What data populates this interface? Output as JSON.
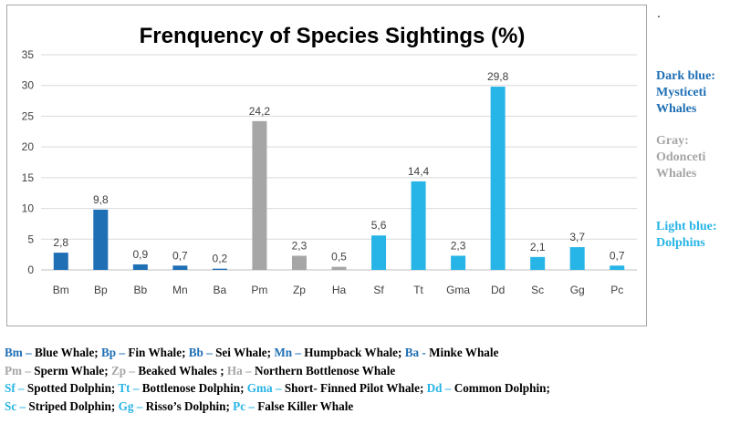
{
  "corner_mark": ".",
  "colors": {
    "mysticeti": "#1f6fb5",
    "odonceti": "#a6a6a6",
    "dolphins": "#27b4e6"
  },
  "chart_data": {
    "type": "bar",
    "title": "Frenquency of  Species Sightings (%)",
    "xlabel": "",
    "ylabel": "",
    "ylim": [
      0,
      35
    ],
    "yticks": [
      "0",
      "5",
      "10",
      "15",
      "20",
      "25",
      "30",
      "35"
    ],
    "grid": true,
    "legend_position": "right",
    "categories": [
      "Bm",
      "Bp",
      "Bb",
      "Mn",
      "Ba",
      "Pm",
      "Zp",
      "Ha",
      "Sf",
      "Tt",
      "Gma",
      "Dd",
      "Sc",
      "Gg",
      "Pc"
    ],
    "values": [
      2.8,
      9.8,
      0.9,
      0.7,
      0.2,
      24.2,
      2.3,
      0.5,
      5.6,
      14.4,
      2.3,
      29.8,
      2.1,
      3.7,
      0.7
    ],
    "value_labels": [
      "2,8",
      "9,8",
      "0,9",
      "0,7",
      "0,2",
      "24,2",
      "2,3",
      "0,5",
      "5,6",
      "14,4",
      "2,3",
      "29,8",
      "2,1",
      "3,7",
      "0,7"
    ],
    "groups": [
      "mysticeti",
      "mysticeti",
      "mysticeti",
      "mysticeti",
      "mysticeti",
      "odonceti",
      "odonceti",
      "odonceti",
      "dolphins",
      "dolphins",
      "dolphins",
      "dolphins",
      "dolphins",
      "dolphins",
      "dolphins"
    ]
  },
  "side_legend": [
    {
      "group": "mysticeti",
      "lines": [
        "Dark blue:",
        "Mysticeti",
        "Whales"
      ]
    },
    {
      "group": "odonceti",
      "lines": [
        "Gray:",
        "Odonceti",
        "Whales"
      ]
    },
    {
      "group": "dolphins",
      "lines": [
        "Light blue:",
        "Dolphins"
      ]
    }
  ],
  "footer": [
    [
      {
        "text": "Bm – ",
        "group": "mysticeti"
      },
      {
        "text": "Blue Whale; "
      },
      {
        "text": "Bp – ",
        "group": "mysticeti"
      },
      {
        "text": "Fin Whale; "
      },
      {
        "text": "Bb – ",
        "group": "mysticeti"
      },
      {
        "text": "Sei Whale; "
      },
      {
        "text": "Mn – ",
        "group": "mysticeti"
      },
      {
        "text": "Humpback Whale; "
      },
      {
        "text": "Ba - ",
        "group": "mysticeti"
      },
      {
        "text": "Minke Whale"
      }
    ],
    [
      {
        "text": "Pm – ",
        "group": "odonceti"
      },
      {
        "text": "Sperm Whale; "
      },
      {
        "text": "Zp – ",
        "group": "odonceti"
      },
      {
        "text": "Beaked Whales ; "
      },
      {
        "text": "Ha – ",
        "group": "odonceti"
      },
      {
        "text": "Northern Bottlenose Whale"
      }
    ],
    [
      {
        "text": "Sf – ",
        "group": "dolphins"
      },
      {
        "text": "Spotted Dolphin; "
      },
      {
        "text": "Tt – ",
        "group": "dolphins"
      },
      {
        "text": "Bottlenose Dolphin; "
      },
      {
        "text": "Gma – ",
        "group": "dolphins"
      },
      {
        "text": "Short- Finned Pilot Whale; "
      },
      {
        "text": "Dd – ",
        "group": "dolphins"
      },
      {
        "text": "Common Dolphin;"
      }
    ],
    [
      {
        "text": "Sc – ",
        "group": "dolphins"
      },
      {
        "text": "Striped Dolphin; "
      },
      {
        "text": "Gg – ",
        "group": "dolphins"
      },
      {
        "text": "Risso’s Dolphin; "
      },
      {
        "text": "Pc – ",
        "group": "dolphins"
      },
      {
        "text": "False Killer Whale"
      }
    ]
  ]
}
